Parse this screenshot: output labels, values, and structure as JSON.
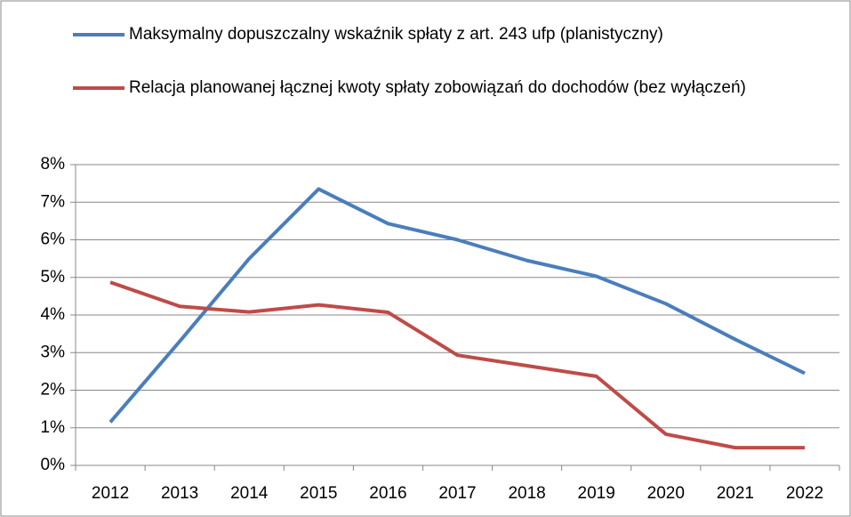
{
  "chart_data": {
    "type": "line",
    "categories": [
      "2012",
      "2013",
      "2014",
      "2015",
      "2016",
      "2017",
      "2018",
      "2019",
      "2020",
      "2021",
      "2022"
    ],
    "series": [
      {
        "name": "Maksymalny dopuszczalny wskaźnik spłaty z art. 243 ufp (planistyczny)",
        "color": "#4a7ebb",
        "values": [
          1.15,
          3.3,
          5.5,
          7.35,
          6.43,
          6.0,
          5.45,
          5.03,
          4.3,
          3.35,
          2.45
        ]
      },
      {
        "name": "Relacja planowanej łącznej kwoty spłaty zobowiązań do dochodów (bez wyłączeń)",
        "color": "#be4b48",
        "values": [
          4.87,
          4.23,
          4.08,
          4.27,
          4.07,
          2.93,
          2.65,
          2.37,
          0.83,
          0.47,
          0.47
        ]
      }
    ],
    "ylim": [
      0,
      8
    ],
    "yticks": [
      {
        "value": 0,
        "label": "0%"
      },
      {
        "value": 1,
        "label": "1%"
      },
      {
        "value": 2,
        "label": "2%"
      },
      {
        "value": 3,
        "label": "3%"
      },
      {
        "value": 4,
        "label": "4%"
      },
      {
        "value": 5,
        "label": "5%"
      },
      {
        "value": 6,
        "label": "6%"
      },
      {
        "value": 7,
        "label": "7%"
      },
      {
        "value": 8,
        "label": "8%"
      }
    ],
    "grid": true,
    "legend": "top"
  }
}
